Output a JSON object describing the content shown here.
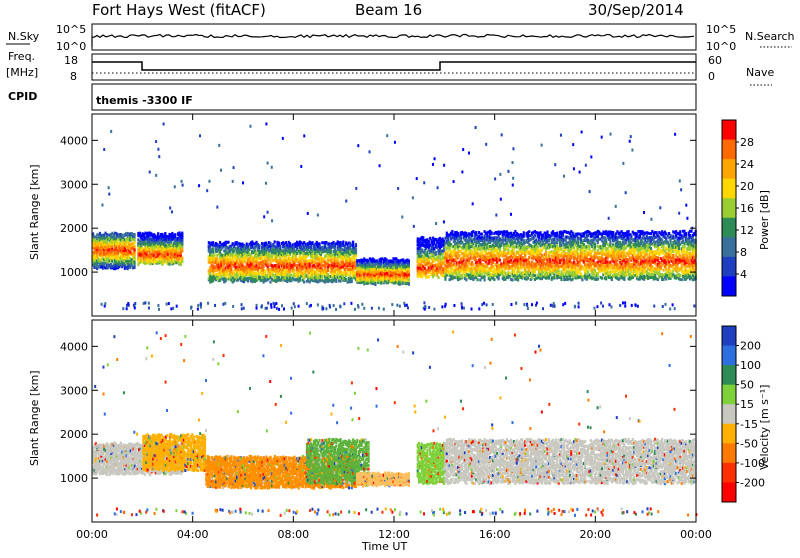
{
  "header": {
    "station": "Fort Hays West (fitACF)",
    "beam": "Beam 16",
    "date": "30/Sep/2014"
  },
  "status_panels": {
    "nsky_label": "N.Sky",
    "nsearch_label": "N.Search",
    "nsky_ticks": [
      "10^5",
      "10^0"
    ],
    "nsearch_ticks": [
      "10^5",
      "10^0"
    ],
    "freq_label": "Freq.",
    "freq_unit": "[MHz]",
    "freq_ticks": [
      "18",
      "8"
    ],
    "nave_label": "Nave",
    "nave_ticks": [
      "60",
      "0"
    ],
    "cpid_label": "CPID",
    "cpid_value": "themis -3300 IF"
  },
  "chart_data": [
    {
      "type": "heatmap",
      "title": "",
      "ylabel": "Slant Range [km]",
      "xlabel": "",
      "x_ticks": [
        "00:00",
        "04:00",
        "08:00",
        "12:00",
        "16:00",
        "20:00",
        "00:00"
      ],
      "y_ticks": [
        "1000",
        "2000",
        "3000",
        "4000"
      ],
      "ylim": [
        0,
        4600
      ],
      "xlim_hours": [
        0,
        24
      ],
      "colorbar_label": "Power [dB]",
      "colorbar_ticks": [
        "28",
        "24",
        "20",
        "16",
        "12",
        "8",
        "4"
      ],
      "colorbar_colors": [
        "#ff0000",
        "#ff6a00",
        "#ffa500",
        "#ffd700",
        "#9acd32",
        "#2e8b57",
        "#3a6f9a",
        "#1e3fbf",
        "#0000ff"
      ],
      "echo_bands": [
        {
          "t0": 0.0,
          "t1": 1.7,
          "r0": 1100,
          "r1": 1900,
          "peak": 1500
        },
        {
          "t0": 1.8,
          "t1": 3.6,
          "r0": 1200,
          "r1": 1900,
          "peak": 1400
        },
        {
          "t0": 4.6,
          "t1": 10.5,
          "r0": 800,
          "r1": 1700,
          "peak": 1150
        },
        {
          "t0": 10.5,
          "t1": 12.6,
          "r0": 750,
          "r1": 1300,
          "peak": 950
        },
        {
          "t0": 12.9,
          "t1": 14.0,
          "r0": 900,
          "r1": 1800,
          "peak": 1100
        },
        {
          "t0": 14.0,
          "t1": 24.0,
          "r0": 850,
          "r1": 1950,
          "peak": 1250
        }
      ]
    },
    {
      "type": "heatmap",
      "title": "",
      "ylabel": "Slant Range [km]",
      "xlabel": "Time UT",
      "x_ticks": [
        "00:00",
        "04:00",
        "08:00",
        "12:00",
        "16:00",
        "20:00",
        "00:00"
      ],
      "y_ticks": [
        "1000",
        "2000",
        "3000",
        "4000"
      ],
      "ylim": [
        0,
        4600
      ],
      "xlim_hours": [
        0,
        24
      ],
      "colorbar_label": "Velocity [m s⁻¹]",
      "colorbar_ticks": [
        "200",
        "100",
        "50",
        "15",
        "-15",
        "-50",
        "-100",
        "-200"
      ],
      "colorbar_colors": [
        "#1e3fbf",
        "#2e6fe0",
        "#2e8b57",
        "#7fd13b",
        "#c8c8c0",
        "#ffb000",
        "#ff7a00",
        "#ff3000",
        "#ff0000"
      ],
      "echo_bands": [
        {
          "t0": 0.0,
          "t1": 3.6,
          "r0": 1100,
          "r1": 1800,
          "color": "#c8c8c0"
        },
        {
          "t0": 2.0,
          "t1": 4.5,
          "r0": 1200,
          "r1": 2000,
          "color": "#ffb000"
        },
        {
          "t0": 4.5,
          "t1": 10.5,
          "r0": 800,
          "r1": 1500,
          "color": "#ff9000"
        },
        {
          "t0": 8.5,
          "t1": 11.0,
          "r0": 900,
          "r1": 1900,
          "color": "#5cb23b"
        },
        {
          "t0": 10.5,
          "t1": 12.6,
          "r0": 850,
          "r1": 1100,
          "color": "#ffc060"
        },
        {
          "t0": 12.9,
          "t1": 14.0,
          "r0": 900,
          "r1": 1800,
          "color": "#7fd13b"
        },
        {
          "t0": 14.0,
          "t1": 24.0,
          "r0": 900,
          "r1": 1900,
          "color": "#c8c8c0"
        }
      ]
    }
  ]
}
